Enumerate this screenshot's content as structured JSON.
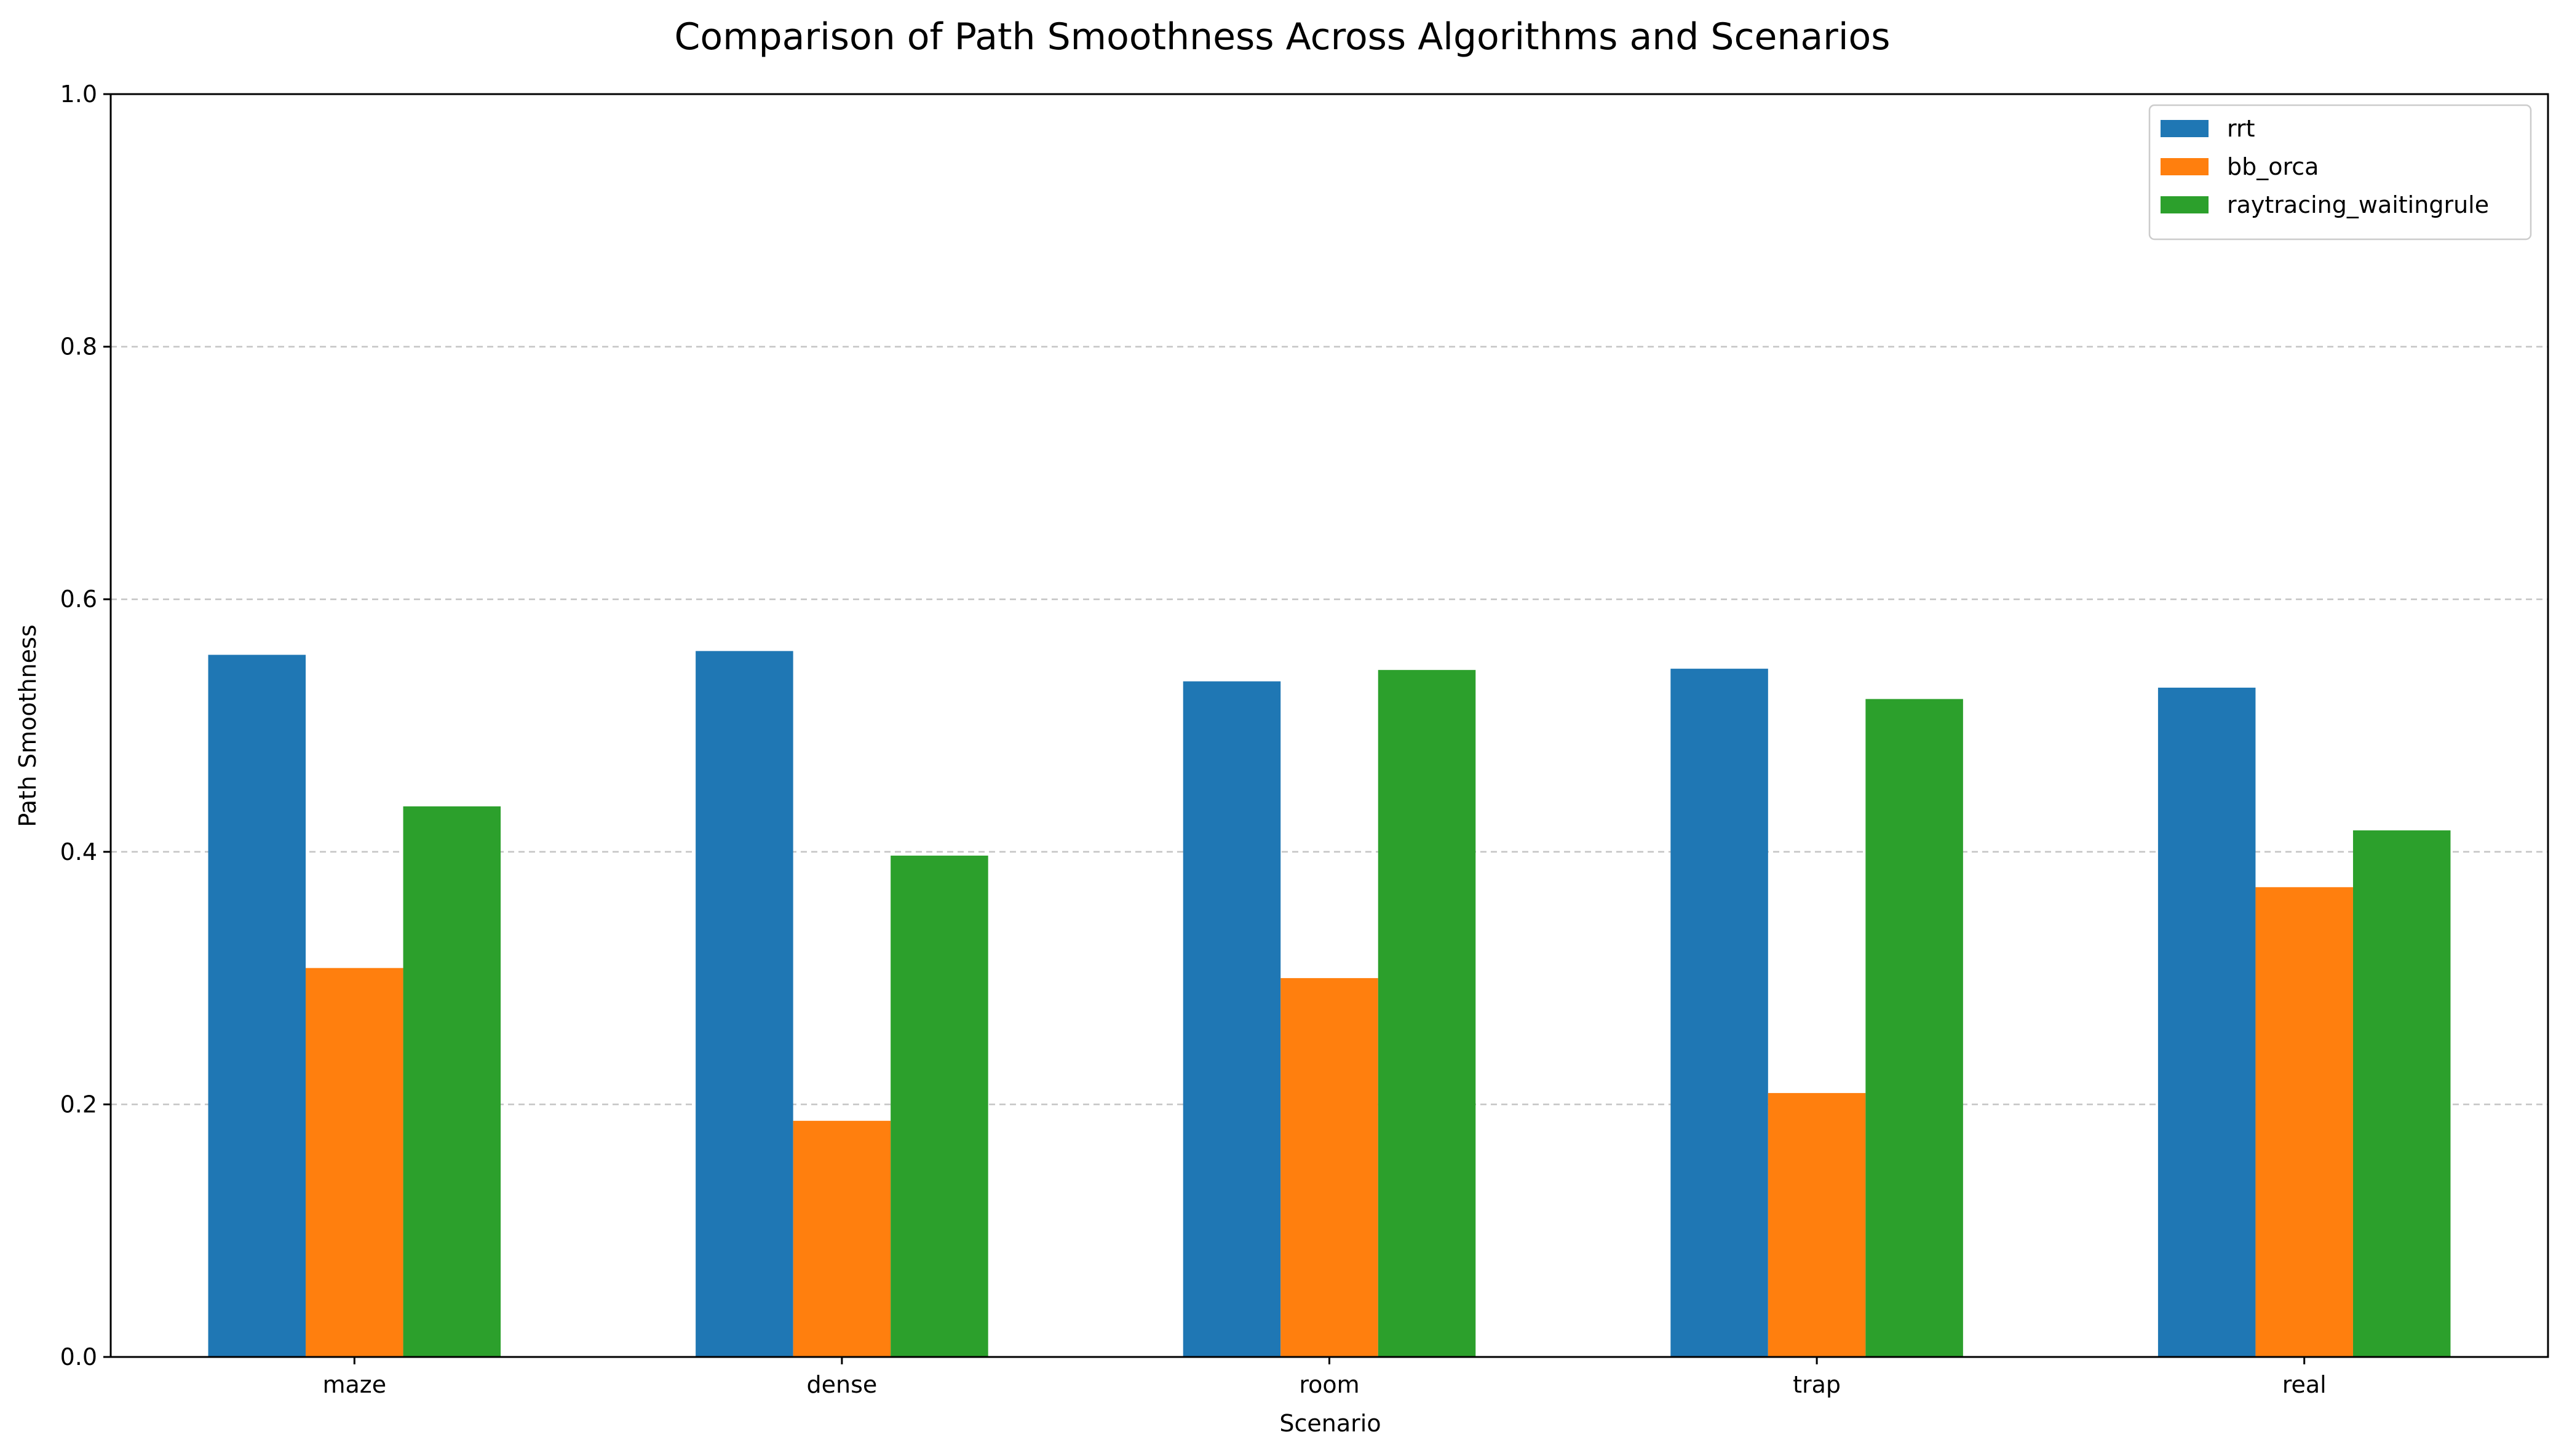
{
  "chart_data": {
    "type": "bar",
    "title": "Comparison of Path Smoothness Across Algorithms and Scenarios",
    "xlabel": "Scenario",
    "ylabel": "Path Smoothness",
    "categories": [
      "maze",
      "dense",
      "room",
      "trap",
      "real"
    ],
    "ylim": [
      0,
      1.0
    ],
    "yticks": [
      0.0,
      0.2,
      0.4,
      0.6,
      0.8,
      1.0
    ],
    "ytick_labels": [
      "0.0",
      "0.2",
      "0.4",
      "0.6",
      "0.8",
      "1.0"
    ],
    "grid": "y-dashed",
    "legend_position": "top-right",
    "series": [
      {
        "name": "rrt",
        "color": "#1f77b4",
        "values": [
          0.556,
          0.559,
          0.535,
          0.545,
          0.53
        ]
      },
      {
        "name": "bb_orca",
        "color": "#ff7f0e",
        "values": [
          0.308,
          0.187,
          0.3,
          0.209,
          0.372
        ]
      },
      {
        "name": "raytracing_waitingrule",
        "color": "#2ca02c",
        "values": [
          0.436,
          0.397,
          0.544,
          0.521,
          0.417
        ]
      }
    ]
  }
}
